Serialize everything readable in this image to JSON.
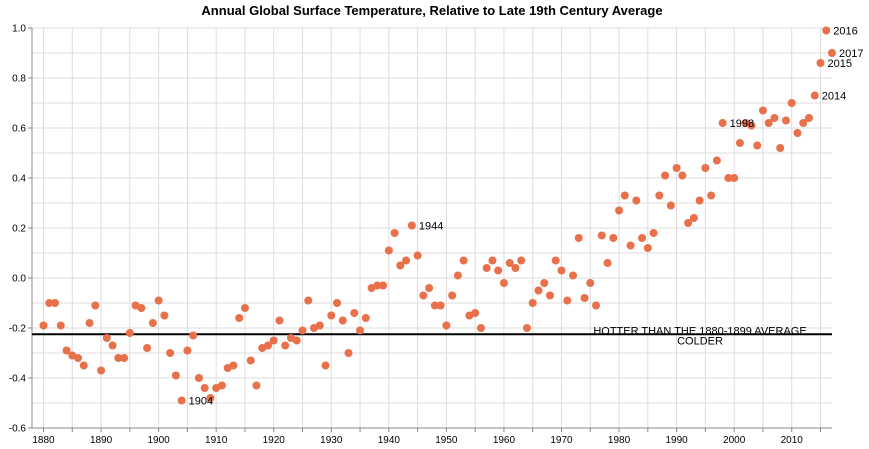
{
  "chart_data": {
    "type": "scatter",
    "title": "Annual Global Surface Temperature, Relative to Late 19th Century Average",
    "xlabel": "",
    "ylabel": "",
    "xlim": [
      1878,
      2017
    ],
    "ylim": [
      -0.6,
      1.0
    ],
    "x_ticks": [
      1880,
      1890,
      1900,
      1910,
      1920,
      1930,
      1940,
      1950,
      1960,
      1970,
      1980,
      1990,
      2000,
      2010
    ],
    "y_ticks": [
      -0.6,
      -0.4,
      -0.2,
      0.0,
      0.2,
      0.4,
      0.6,
      0.8,
      1.0
    ],
    "y_tick_labels": [
      "-0.6",
      "-0.4",
      "-0.2",
      "0.0",
      "0.2",
      "0.4",
      "0.6",
      "0.8",
      "1.0"
    ],
    "grid": true,
    "color": "#e8704a",
    "reference_line": {
      "y": -0.225,
      "label_above": "HOTTER THAN THE 1880-1899 AVERAGE",
      "label_below": "COLDER"
    },
    "x": [
      1880,
      1881,
      1882,
      1883,
      1884,
      1885,
      1886,
      1887,
      1888,
      1889,
      1890,
      1891,
      1892,
      1893,
      1894,
      1895,
      1896,
      1897,
      1898,
      1899,
      1900,
      1901,
      1902,
      1903,
      1904,
      1905,
      1906,
      1907,
      1908,
      1909,
      1910,
      1911,
      1912,
      1913,
      1914,
      1915,
      1916,
      1917,
      1918,
      1919,
      1920,
      1921,
      1922,
      1923,
      1924,
      1925,
      1926,
      1927,
      1928,
      1929,
      1930,
      1931,
      1932,
      1933,
      1934,
      1935,
      1936,
      1937,
      1938,
      1939,
      1940,
      1941,
      1942,
      1943,
      1944,
      1945,
      1946,
      1947,
      1948,
      1949,
      1950,
      1951,
      1952,
      1953,
      1954,
      1955,
      1956,
      1957,
      1958,
      1959,
      1960,
      1961,
      1962,
      1963,
      1964,
      1965,
      1966,
      1967,
      1968,
      1969,
      1970,
      1971,
      1972,
      1973,
      1974,
      1975,
      1976,
      1977,
      1978,
      1979,
      1980,
      1981,
      1982,
      1983,
      1984,
      1985,
      1986,
      1987,
      1988,
      1989,
      1990,
      1991,
      1992,
      1993,
      1994,
      1995,
      1996,
      1997,
      1998,
      1999,
      2000,
      2001,
      2002,
      2003,
      2004,
      2005,
      2006,
      2007,
      2008,
      2009,
      2010,
      2011,
      2012,
      2013,
      2014,
      2015,
      2016,
      2017
    ],
    "y": [
      -0.19,
      -0.1,
      -0.1,
      -0.19,
      -0.29,
      -0.31,
      -0.32,
      -0.35,
      -0.18,
      -0.11,
      -0.37,
      -0.24,
      -0.27,
      -0.32,
      -0.32,
      -0.22,
      -0.11,
      -0.12,
      -0.28,
      -0.18,
      -0.09,
      -0.15,
      -0.3,
      -0.39,
      -0.49,
      -0.29,
      -0.23,
      -0.4,
      -0.44,
      -0.48,
      -0.44,
      -0.43,
      -0.36,
      -0.35,
      -0.16,
      -0.12,
      -0.33,
      -0.43,
      -0.28,
      -0.27,
      -0.25,
      -0.17,
      -0.27,
      -0.24,
      -0.25,
      -0.21,
      -0.09,
      -0.2,
      -0.19,
      -0.35,
      -0.15,
      -0.1,
      -0.17,
      -0.3,
      -0.14,
      -0.21,
      -0.16,
      -0.04,
      -0.03,
      -0.03,
      0.11,
      0.18,
      0.05,
      0.07,
      0.21,
      0.09,
      -0.07,
      -0.04,
      -0.11,
      -0.11,
      -0.19,
      -0.07,
      0.01,
      0.07,
      -0.15,
      -0.14,
      -0.2,
      0.04,
      0.07,
      0.03,
      -0.02,
      0.06,
      0.04,
      0.07,
      -0.2,
      -0.1,
      -0.05,
      -0.02,
      -0.07,
      0.07,
      0.03,
      -0.09,
      0.01,
      0.16,
      -0.08,
      -0.02,
      -0.11,
      0.17,
      0.06,
      0.16,
      0.27,
      0.33,
      0.13,
      0.31,
      0.16,
      0.12,
      0.18,
      0.33,
      0.41,
      0.29,
      0.44,
      0.41,
      0.22,
      0.24,
      0.31,
      0.44,
      0.33,
      0.47,
      0.62,
      0.4,
      0.4,
      0.54,
      0.62,
      0.61,
      0.53,
      0.67,
      0.62,
      0.64,
      0.52,
      0.63,
      0.7,
      0.58,
      0.62,
      0.64,
      0.73,
      0.86,
      0.99,
      0.9
    ],
    "annotations": [
      {
        "x": 1904,
        "y": -0.49,
        "text": "1904"
      },
      {
        "x": 1944,
        "y": 0.21,
        "text": "1944"
      },
      {
        "x": 1998,
        "y": 0.62,
        "text": "1998"
      },
      {
        "x": 2014,
        "y": 0.73,
        "text": "2014"
      },
      {
        "x": 2015,
        "y": 0.86,
        "text": "2015"
      },
      {
        "x": 2016,
        "y": 0.99,
        "text": "2016"
      },
      {
        "x": 2017,
        "y": 0.9,
        "text": "2017"
      }
    ]
  }
}
